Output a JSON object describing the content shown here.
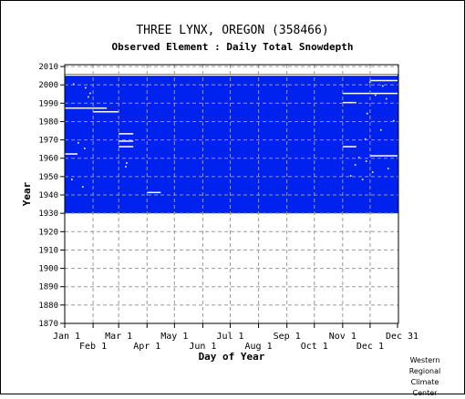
{
  "chart_data": {
    "type": "heatmap",
    "title": "THREE LYNX, OREGON   (358466)",
    "subtitle": "Observed Element : Daily Total Snowdepth",
    "xlabel": "Day of Year",
    "ylabel": "Year",
    "x_ticks_top_row": [
      "Jan 1",
      "Mar 1",
      "May 1",
      "Jul 1",
      "Sep 1",
      "Nov 1",
      "Dec 31"
    ],
    "x_ticks_bottom_row": [
      "Feb 1",
      "Apr 1",
      "Jun 1",
      "Aug 1",
      "Oct 1",
      "Dec 1"
    ],
    "x_tick_days": [
      1,
      32,
      60,
      91,
      121,
      152,
      182,
      213,
      244,
      274,
      305,
      335,
      365
    ],
    "y_ticks": [
      1870,
      1880,
      1890,
      1900,
      1910,
      1920,
      1930,
      1940,
      1950,
      1960,
      1970,
      1980,
      1990,
      2000,
      2010
    ],
    "ylim": [
      1870,
      2011
    ],
    "xlim": [
      1,
      365
    ],
    "grid": true,
    "colors": {
      "data_present": "#0022ee",
      "missing": "#ffffff",
      "background": "#ffffff"
    },
    "data_present_years": [
      1930,
      2005
    ],
    "missing_segments": [
      {
        "year": 2005,
        "start_day": 1,
        "end_day": 365
      },
      {
        "year": 2002,
        "start_day": 335,
        "end_day": 365
      },
      {
        "year": 1995,
        "start_day": 305,
        "end_day": 365
      },
      {
        "year": 1990,
        "start_day": 305,
        "end_day": 320
      },
      {
        "year": 1987,
        "start_day": 1,
        "end_day": 32
      },
      {
        "year": 1987,
        "start_day": 32,
        "end_day": 47
      },
      {
        "year": 1985,
        "start_day": 32,
        "end_day": 60
      },
      {
        "year": 1973,
        "start_day": 60,
        "end_day": 76
      },
      {
        "year": 1969,
        "start_day": 60,
        "end_day": 76
      },
      {
        "year": 1966,
        "start_day": 60,
        "end_day": 76
      },
      {
        "year": 1966,
        "start_day": 305,
        "end_day": 320
      },
      {
        "year": 1962,
        "start_day": 1,
        "end_day": 15
      },
      {
        "year": 1961,
        "start_day": 335,
        "end_day": 365
      },
      {
        "year": 1941,
        "start_day": 91,
        "end_day": 106
      }
    ],
    "missing_days": [
      {
        "year": 2000,
        "day": 10
      },
      {
        "year": 1998,
        "day": 23
      },
      {
        "year": 1995,
        "day": 28
      },
      {
        "year": 1993,
        "day": 26
      },
      {
        "year": 1968,
        "day": 15
      },
      {
        "year": 1965,
        "day": 22
      },
      {
        "year": 1957,
        "day": 68
      },
      {
        "year": 1955,
        "day": 67
      },
      {
        "year": 1948,
        "day": 8
      },
      {
        "year": 1944,
        "day": 20
      },
      {
        "year": 2001,
        "day": 334
      },
      {
        "year": 1999,
        "day": 348
      },
      {
        "year": 1994,
        "day": 340
      },
      {
        "year": 1992,
        "day": 352
      },
      {
        "year": 1984,
        "day": 331
      },
      {
        "year": 1980,
        "day": 360
      },
      {
        "year": 1975,
        "day": 346
      },
      {
        "year": 1970,
        "day": 329
      },
      {
        "year": 1960,
        "day": 322
      },
      {
        "year": 1958,
        "day": 330
      },
      {
        "year": 1956,
        "day": 318
      },
      {
        "year": 1954,
        "day": 354
      },
      {
        "year": 1952,
        "day": 337
      },
      {
        "year": 1950,
        "day": 313
      },
      {
        "year": 1948,
        "day": 326
      }
    ]
  },
  "credit": [
    "Western",
    "Regional",
    "Climate",
    "Center"
  ]
}
